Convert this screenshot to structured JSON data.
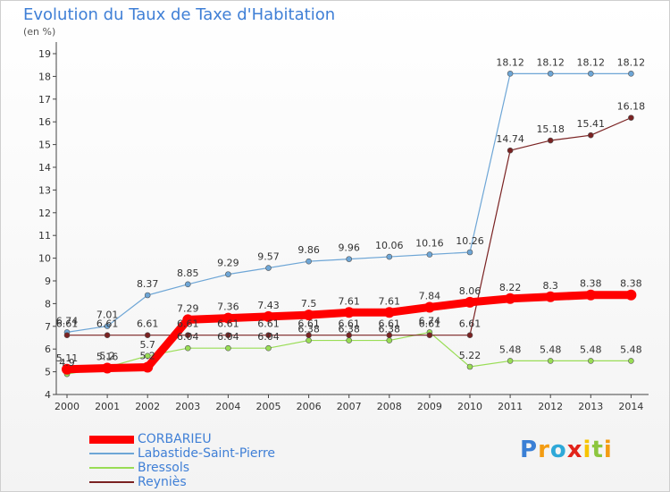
{
  "title": "Evolution du Taux de Taxe d'Habitation",
  "unit": "(en %)",
  "logo": [
    "P",
    "r",
    "o",
    "x",
    "i",
    "t",
    "i"
  ],
  "chart_data": {
    "type": "line",
    "x": [
      2000,
      2001,
      2002,
      2003,
      2004,
      2005,
      2006,
      2007,
      2008,
      2009,
      2010,
      2011,
      2012,
      2013,
      2014
    ],
    "ylim": [
      4,
      19
    ],
    "yticks": [
      4,
      5,
      6,
      7,
      8,
      9,
      10,
      11,
      12,
      13,
      14,
      15,
      16,
      17,
      18,
      19
    ],
    "grid": false,
    "legend_position": "bottom-left",
    "series": [
      {
        "name": "CORBARIEU",
        "color": "#ff0000",
        "values": [
          5.11,
          5.16,
          5.2,
          7.29,
          7.36,
          7.43,
          7.5,
          7.61,
          7.61,
          7.84,
          8.06,
          8.22,
          8.3,
          8.38,
          8.38
        ],
        "labels": [
          "5.11",
          "5.16",
          "5.2",
          "7.29",
          "7.36",
          "7.43",
          "7.5",
          "7.61",
          "7.61",
          "7.84",
          "8.06",
          "8.22",
          "8.3",
          "8.38",
          "8.38"
        ]
      },
      {
        "name": "Labastide-Saint-Pierre",
        "color": "#6ea6d6",
        "values": [
          6.74,
          7.01,
          8.37,
          8.85,
          9.29,
          9.57,
          9.86,
          9.96,
          10.06,
          10.16,
          10.26,
          18.12,
          18.12,
          18.12,
          18.12
        ],
        "labels": [
          "6.74",
          "7.01",
          "8.37",
          "8.85",
          "9.29",
          "9.57",
          "9.86",
          "9.96",
          "10.06",
          "10.16",
          "10.26",
          "18.12",
          "18.12",
          "18.12",
          "18.12"
        ]
      },
      {
        "name": "Bressols",
        "color": "#99dd55",
        "values": [
          4.9,
          5.2,
          5.7,
          6.04,
          6.04,
          6.04,
          6.38,
          6.38,
          6.38,
          6.74,
          5.22,
          5.48,
          5.48,
          5.48,
          5.48
        ],
        "labels": [
          "4.9",
          "5.2",
          "5.7",
          "6.04",
          "6.04",
          "6.04",
          "6.38",
          "6.38",
          "6.38",
          "6.74",
          "5.22",
          "5.48",
          "5.48",
          "5.48",
          "5.48"
        ]
      },
      {
        "name": "Reyniès",
        "color": "#7a2222",
        "values": [
          6.61,
          6.61,
          6.61,
          6.61,
          6.61,
          6.61,
          6.61,
          6.61,
          6.61,
          6.61,
          6.61,
          14.74,
          15.18,
          15.41,
          16.18
        ],
        "labels": [
          "6.61",
          "6.61",
          "6.61",
          "6.61",
          "6.61",
          "6.61",
          "6.61",
          "6.61",
          "6.61",
          "6.61",
          "6.61",
          "14.74",
          "15.18",
          "15.41",
          "16.18"
        ]
      }
    ]
  }
}
